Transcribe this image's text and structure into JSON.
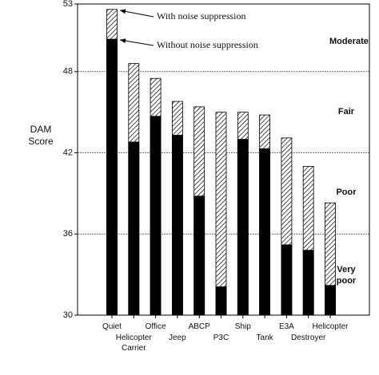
{
  "chart_data": {
    "type": "bar",
    "y_label": "DAM Score",
    "categories": [
      "Quiet",
      "Helicopter Carrier",
      "Office",
      "Jeep",
      "ABCP",
      "P3C",
      "Ship",
      "Tank",
      "E3A",
      "Destroyer",
      "Helicopter"
    ],
    "series": [
      {
        "name": "With noise suppression",
        "color": "#000000",
        "values": [
          52.6,
          48.6,
          47.5,
          45.8,
          45.4,
          45.0,
          45.0,
          44.8,
          43.1,
          41.0,
          38.3
        ]
      },
      {
        "name": "Without noise suppression",
        "color": "#000000",
        "values": [
          50.4,
          42.8,
          44.7,
          43.3,
          38.8,
          32.1,
          43.0,
          42.3,
          35.2,
          34.8,
          32.2
        ]
      }
    ],
    "ylim": [
      30,
      53
    ],
    "yticks": [
      30,
      36,
      42,
      48,
      53
    ],
    "grid": true,
    "zones": [
      "Moderate",
      "Fair",
      "Poor",
      "Very poor"
    ]
  }
}
